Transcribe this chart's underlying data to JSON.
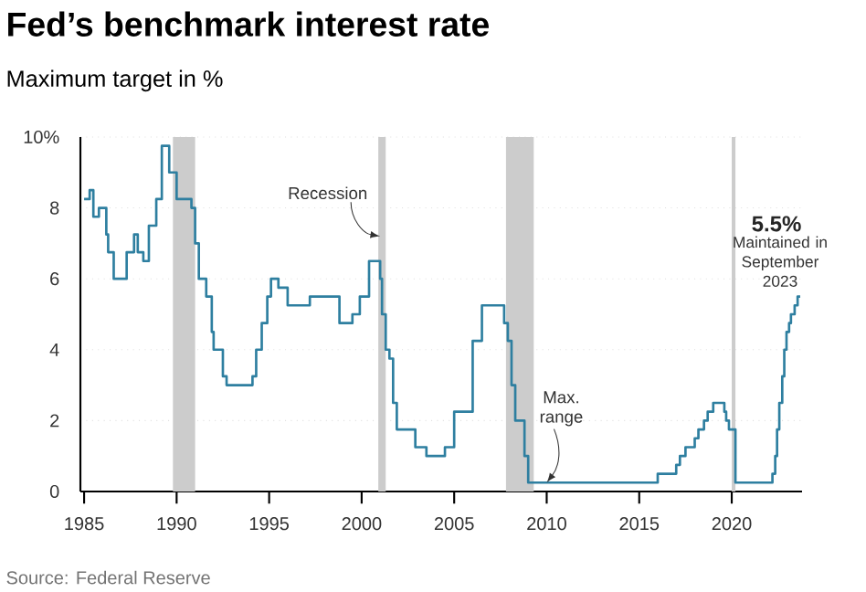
{
  "chart_data": {
    "type": "step",
    "title": "Fed’s benchmark interest rate",
    "subtitle": "Maximum target in %",
    "x": [
      1985.0,
      1985.3,
      1985.5,
      1985.8,
      1986.2,
      1986.3,
      1986.6,
      1987.0,
      1987.3,
      1987.7,
      1987.9,
      1988.2,
      1988.5,
      1988.9,
      1989.2,
      1989.6,
      1990.0,
      1990.8,
      1991.0,
      1991.2,
      1991.6,
      1991.9,
      1992.0,
      1992.5,
      1992.7,
      1994.1,
      1994.3,
      1994.6,
      1994.9,
      1995.1,
      1995.5,
      1996.0,
      1997.2,
      1998.8,
      1999.5,
      1999.9,
      2000.4,
      2001.0,
      2001.1,
      2001.3,
      2001.5,
      2001.7,
      2001.9,
      2002.9,
      2003.5,
      2004.5,
      2005.0,
      2006.0,
      2006.5,
      2007.7,
      2007.9,
      2008.1,
      2008.3,
      2008.8,
      2009.0,
      2016.0,
      2017.0,
      2017.2,
      2017.5,
      2018.0,
      2018.2,
      2018.5,
      2018.7,
      2019.0,
      2019.6,
      2019.7,
      2019.85,
      2020.2,
      2022.2,
      2022.35,
      2022.45,
      2022.57,
      2022.73,
      2022.84,
      2022.96,
      2023.1,
      2023.2,
      2023.4,
      2023.56,
      2023.7
    ],
    "series": [
      {
        "color": "#2e7fa0",
        "values": [
          8.25,
          8.5,
          7.75,
          8.0,
          7.25,
          6.75,
          6.0,
          6.0,
          6.75,
          7.25,
          6.75,
          6.5,
          7.5,
          8.25,
          9.75,
          9.0,
          8.25,
          8.0,
          7.0,
          6.0,
          5.5,
          4.5,
          4.0,
          3.25,
          3.0,
          3.25,
          4.0,
          4.75,
          5.5,
          6.0,
          5.75,
          5.25,
          5.5,
          4.75,
          5.0,
          5.5,
          6.5,
          6.0,
          5.0,
          4.0,
          3.75,
          2.5,
          1.75,
          1.25,
          1.0,
          1.25,
          2.25,
          4.25,
          5.25,
          4.75,
          4.25,
          3.0,
          2.0,
          1.0,
          0.25,
          0.5,
          0.75,
          1.0,
          1.25,
          1.5,
          1.75,
          2.0,
          2.25,
          2.5,
          2.25,
          2.0,
          1.75,
          0.25,
          0.5,
          1.0,
          1.75,
          2.5,
          3.25,
          4.0,
          4.5,
          4.75,
          5.0,
          5.25,
          5.5,
          5.5
        ]
      }
    ],
    "xlim": [
      1984.8,
      2023.8
    ],
    "xticks": [
      1985,
      1990,
      1995,
      2000,
      2005,
      2010,
      2015,
      2020
    ],
    "ylim": [
      0,
      10
    ],
    "yticks": [
      0,
      2,
      4,
      6,
      8,
      {
        "value": 10,
        "label": "10%"
      }
    ],
    "grid": "y",
    "bands": [
      {
        "axis": "x",
        "from": 1989.8,
        "to": 1991.0,
        "color": "#cccccc"
      },
      {
        "axis": "x",
        "from": 2000.9,
        "to": 2001.3,
        "color": "#cccccc"
      },
      {
        "axis": "x",
        "from": 2007.8,
        "to": 2009.3,
        "color": "#cccccc"
      },
      {
        "axis": "x",
        "from": 2020.0,
        "to": 2020.2,
        "color": "#cccccc"
      }
    ],
    "annotations": [
      {
        "text": "Recession",
        "x": 2001.0,
        "y": 7.2
      },
      {
        "text": "Max. range",
        "x": 2010.0,
        "y": 0.25
      },
      "5.5%",
      "Maintained in September 2023",
      "Source: Federal Reserve"
    ]
  }
}
